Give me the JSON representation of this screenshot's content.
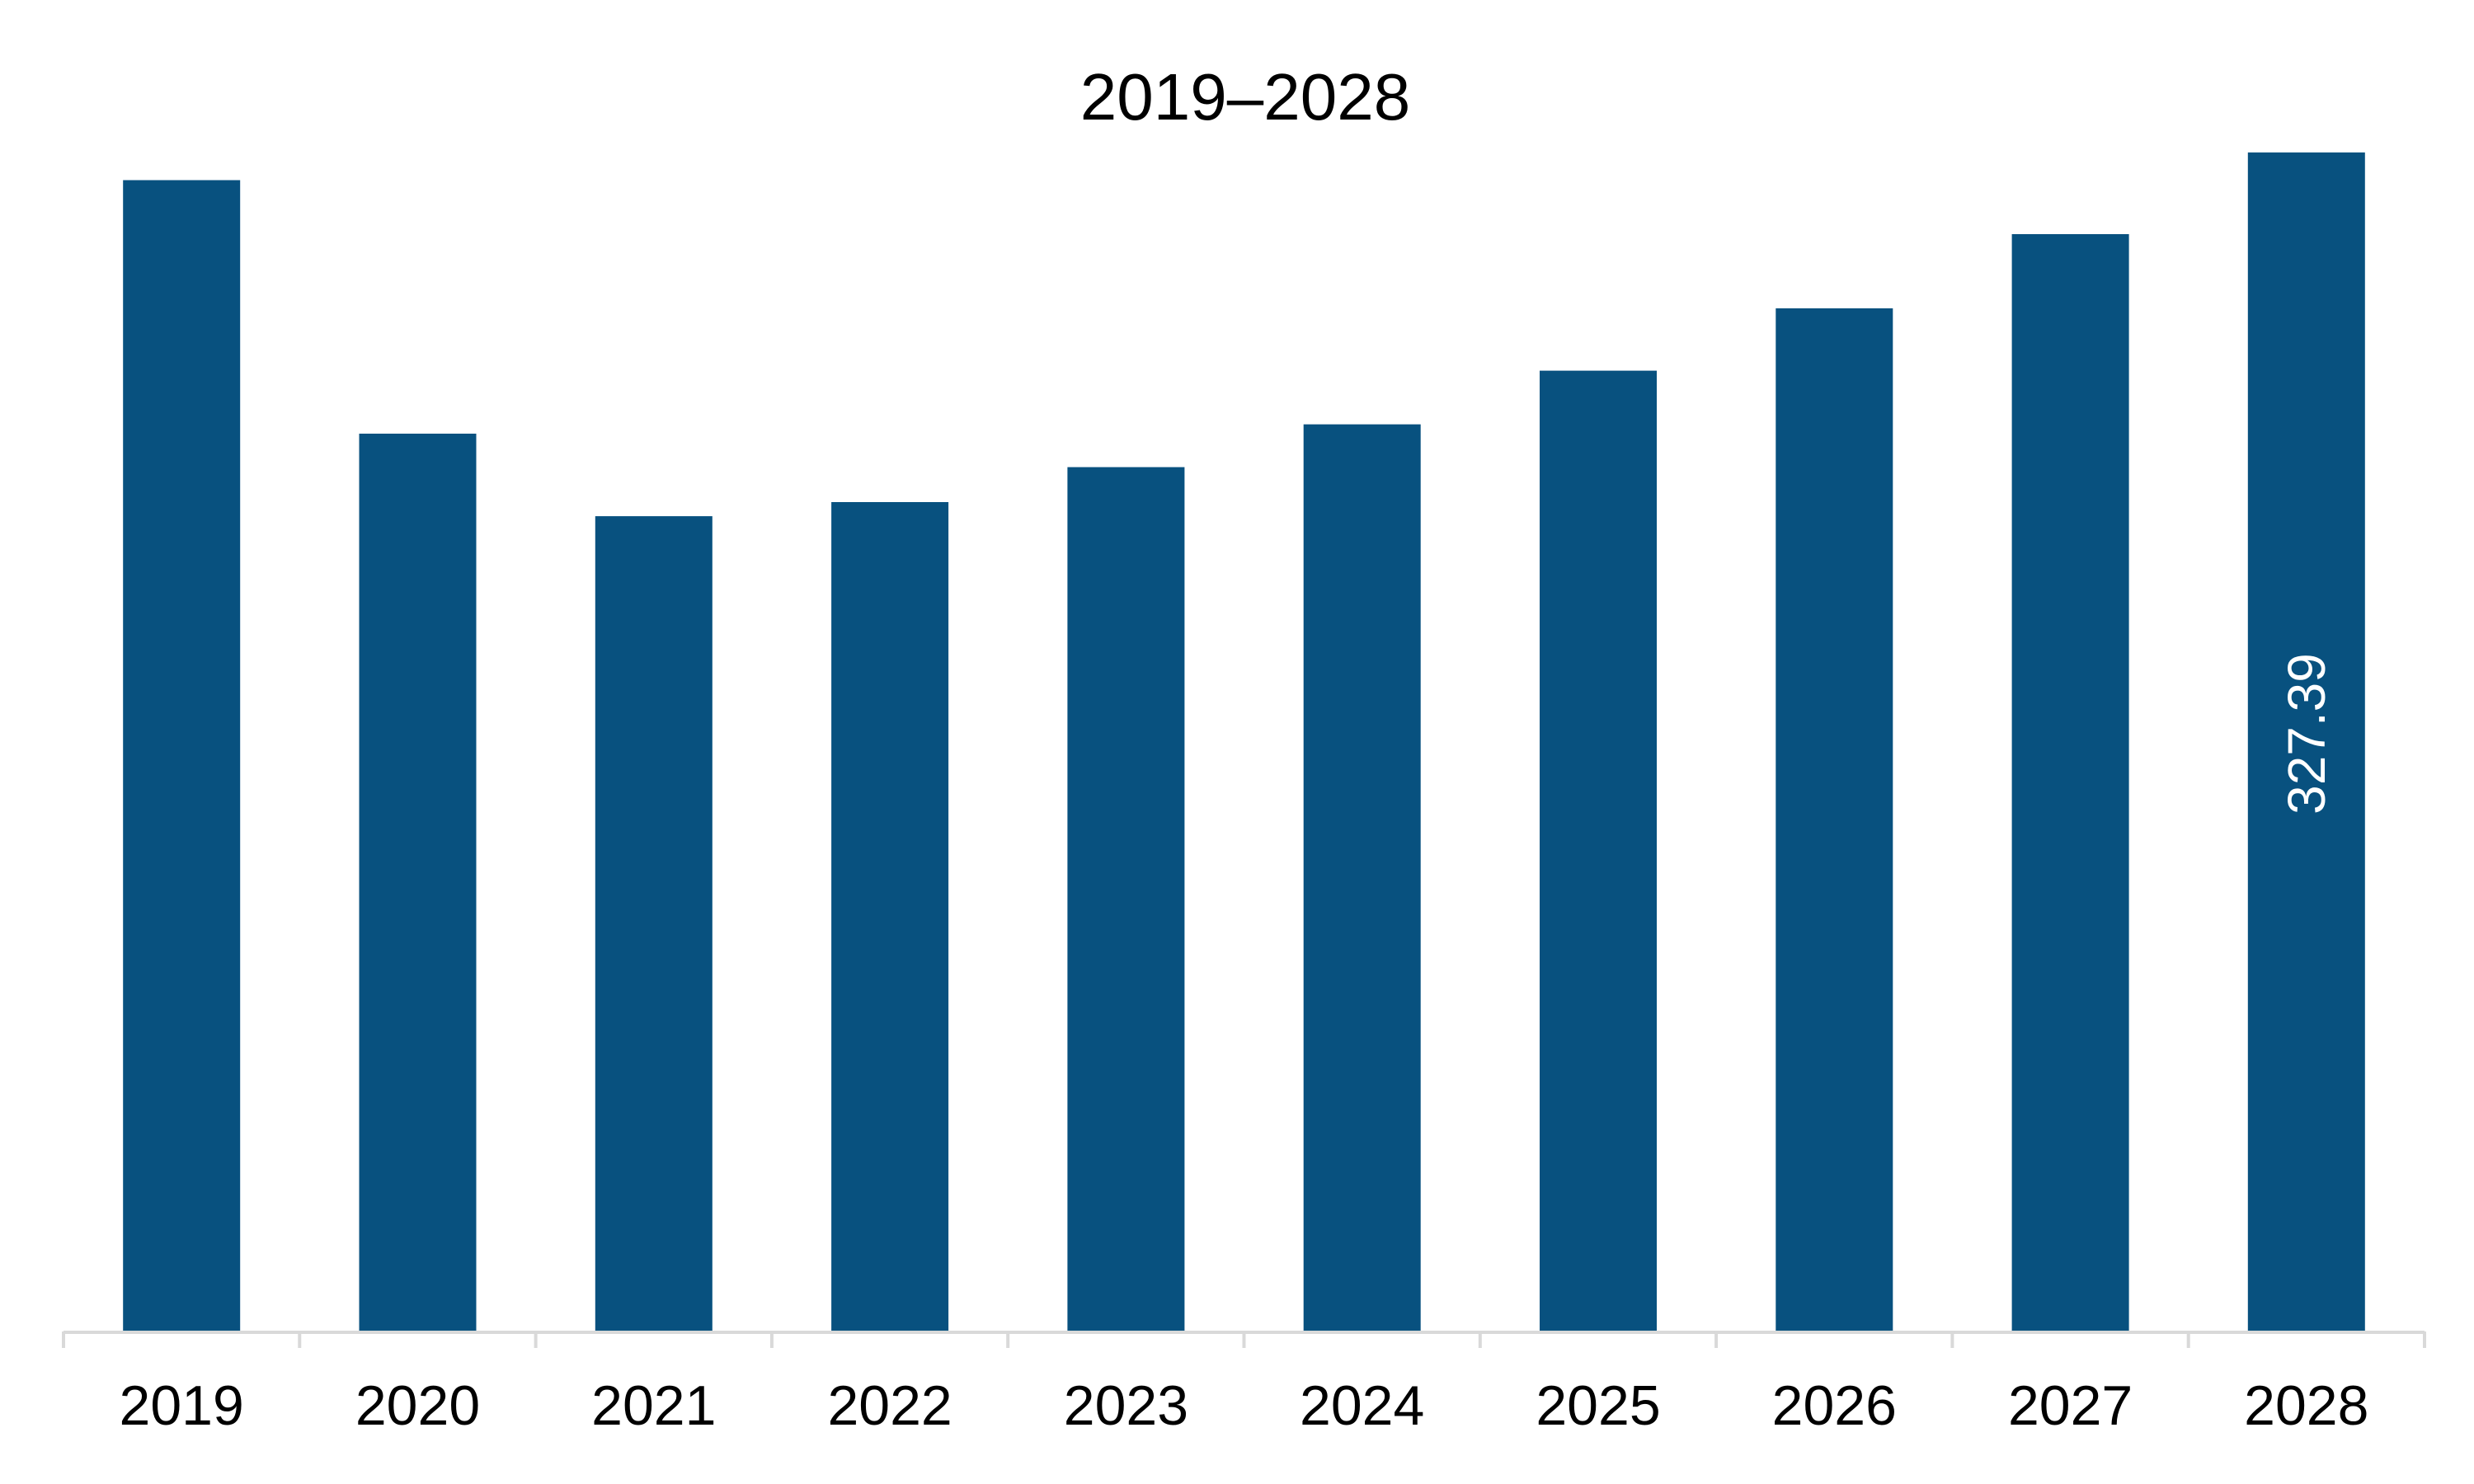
{
  "chart_data": {
    "type": "bar",
    "title": "2019–2028",
    "xlabel": "",
    "ylabel": "",
    "categories": [
      "2019",
      "2020",
      "2021",
      "2022",
      "2023",
      "2024",
      "2025",
      "2026",
      "2027",
      "2028"
    ],
    "values": [
      319.7,
      249.3,
      226.4,
      230.3,
      240.0,
      251.9,
      266.8,
      284.1,
      304.7,
      327.39
    ],
    "data_labels": [
      {
        "category": "2028",
        "text": "327.39"
      }
    ],
    "ylim": [
      0,
      364
    ],
    "grid": false,
    "legend": "none",
    "colors": {
      "bar": "#08517F",
      "axis": "#D9D9D9",
      "data_label": "#FFFFFF",
      "text": "#000000"
    }
  }
}
